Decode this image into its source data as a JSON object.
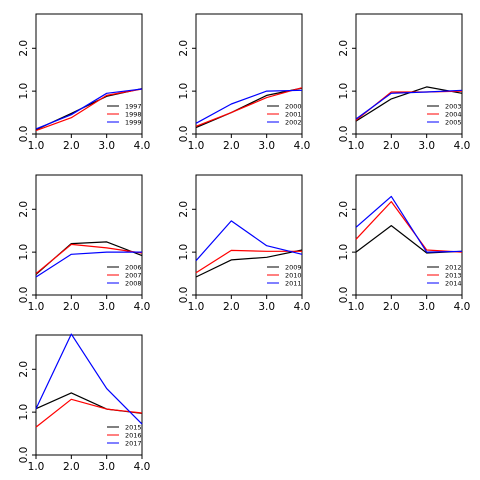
{
  "chart_data": [
    {
      "type": "line",
      "x": [
        1,
        2,
        3,
        4
      ],
      "xlim": [
        1,
        4
      ],
      "ylim": [
        0,
        2.8
      ],
      "xticks": [
        "1.0",
        "2.0",
        "3.0",
        "4.0"
      ],
      "yticks": [
        "0.0",
        "1.0",
        "2.0"
      ],
      "legend_position": "bottom-right",
      "series": [
        {
          "name": "1997",
          "color": "#000000",
          "values": [
            0.1,
            0.48,
            0.88,
            1.06
          ]
        },
        {
          "name": "1998",
          "color": "#ff0000",
          "values": [
            0.08,
            0.38,
            0.9,
            1.05
          ]
        },
        {
          "name": "1999",
          "color": "#0000ff",
          "values": [
            0.12,
            0.45,
            0.95,
            1.05
          ]
        }
      ]
    },
    {
      "type": "line",
      "x": [
        1,
        2,
        3,
        4
      ],
      "xlim": [
        1,
        4
      ],
      "ylim": [
        0,
        2.8
      ],
      "xticks": [
        "1.0",
        "2.0",
        "3.0",
        "4.0"
      ],
      "yticks": [
        "0.0",
        "1.0",
        "2.0"
      ],
      "legend_position": "bottom-right",
      "series": [
        {
          "name": "2000",
          "color": "#000000",
          "values": [
            0.15,
            0.5,
            0.9,
            1.07
          ]
        },
        {
          "name": "2001",
          "color": "#ff0000",
          "values": [
            0.18,
            0.5,
            0.85,
            1.08
          ]
        },
        {
          "name": "2002",
          "color": "#0000ff",
          "values": [
            0.25,
            0.7,
            1.0,
            1.02
          ]
        }
      ]
    },
    {
      "type": "line",
      "x": [
        1,
        2,
        3,
        4
      ],
      "xlim": [
        1,
        4
      ],
      "ylim": [
        0,
        2.8
      ],
      "xticks": [
        "1.0",
        "2.0",
        "3.0",
        "4.0"
      ],
      "yticks": [
        "0.0",
        "1.0",
        "2.0"
      ],
      "legend_position": "bottom-right",
      "series": [
        {
          "name": "2003",
          "color": "#000000",
          "values": [
            0.3,
            0.82,
            1.1,
            0.95
          ]
        },
        {
          "name": "2004",
          "color": "#ff0000",
          "values": [
            0.32,
            0.98,
            0.98,
            1.0
          ]
        },
        {
          "name": "2005",
          "color": "#0000ff",
          "values": [
            0.35,
            0.95,
            0.98,
            1.02
          ]
        }
      ]
    },
    {
      "type": "line",
      "x": [
        1,
        2,
        3,
        4
      ],
      "xlim": [
        1,
        4
      ],
      "ylim": [
        0,
        2.8
      ],
      "xticks": [
        "1.0",
        "2.0",
        "3.0",
        "4.0"
      ],
      "yticks": [
        "0.0",
        "1.0",
        "2.0"
      ],
      "legend_position": "bottom-right",
      "series": [
        {
          "name": "2006",
          "color": "#000000",
          "values": [
            0.48,
            1.2,
            1.24,
            0.92
          ]
        },
        {
          "name": "2007",
          "color": "#ff0000",
          "values": [
            0.5,
            1.18,
            1.1,
            0.98
          ]
        },
        {
          "name": "2008",
          "color": "#0000ff",
          "values": [
            0.42,
            0.95,
            1.0,
            1.0
          ]
        }
      ]
    },
    {
      "type": "line",
      "x": [
        1,
        2,
        3,
        4
      ],
      "xlim": [
        1,
        4
      ],
      "ylim": [
        0,
        2.8
      ],
      "xticks": [
        "1.0",
        "2.0",
        "3.0",
        "4.0"
      ],
      "yticks": [
        "0.0",
        "1.0",
        "2.0"
      ],
      "legend_position": "bottom-right",
      "series": [
        {
          "name": "2009",
          "color": "#000000",
          "values": [
            0.42,
            0.82,
            0.88,
            1.05
          ]
        },
        {
          "name": "2010",
          "color": "#ff0000",
          "values": [
            0.52,
            1.04,
            1.02,
            1.02
          ]
        },
        {
          "name": "2011",
          "color": "#0000ff",
          "values": [
            0.8,
            1.73,
            1.15,
            0.95
          ]
        }
      ]
    },
    {
      "type": "line",
      "x": [
        1,
        2,
        3,
        4
      ],
      "xlim": [
        1,
        4
      ],
      "ylim": [
        0,
        2.8
      ],
      "xticks": [
        "1.0",
        "2.0",
        "3.0",
        "4.0"
      ],
      "yticks": [
        "0.0",
        "1.0",
        "2.0"
      ],
      "legend_position": "bottom-right",
      "series": [
        {
          "name": "2012",
          "color": "#000000",
          "values": [
            1.0,
            1.62,
            0.98,
            1.02
          ]
        },
        {
          "name": "2013",
          "color": "#ff0000",
          "values": [
            1.3,
            2.18,
            1.05,
            1.0
          ]
        },
        {
          "name": "2014",
          "color": "#0000ff",
          "values": [
            1.58,
            2.3,
            1.0,
            1.02
          ]
        }
      ]
    },
    {
      "type": "line",
      "x": [
        1,
        2,
        3,
        4
      ],
      "xlim": [
        1,
        4
      ],
      "ylim": [
        0,
        2.8
      ],
      "xticks": [
        "1.0",
        "2.0",
        "3.0",
        "4.0"
      ],
      "yticks": [
        "0.0",
        "1.0",
        "2.0"
      ],
      "legend_position": "bottom-right",
      "series": [
        {
          "name": "2015",
          "color": "#000000",
          "values": [
            1.08,
            1.45,
            1.07,
            0.97
          ]
        },
        {
          "name": "2016",
          "color": "#ff0000",
          "values": [
            0.65,
            1.3,
            1.07,
            0.98
          ]
        },
        {
          "name": "2017",
          "color": "#0000ff",
          "values": [
            1.08,
            2.82,
            1.55,
            0.72
          ]
        }
      ]
    }
  ]
}
